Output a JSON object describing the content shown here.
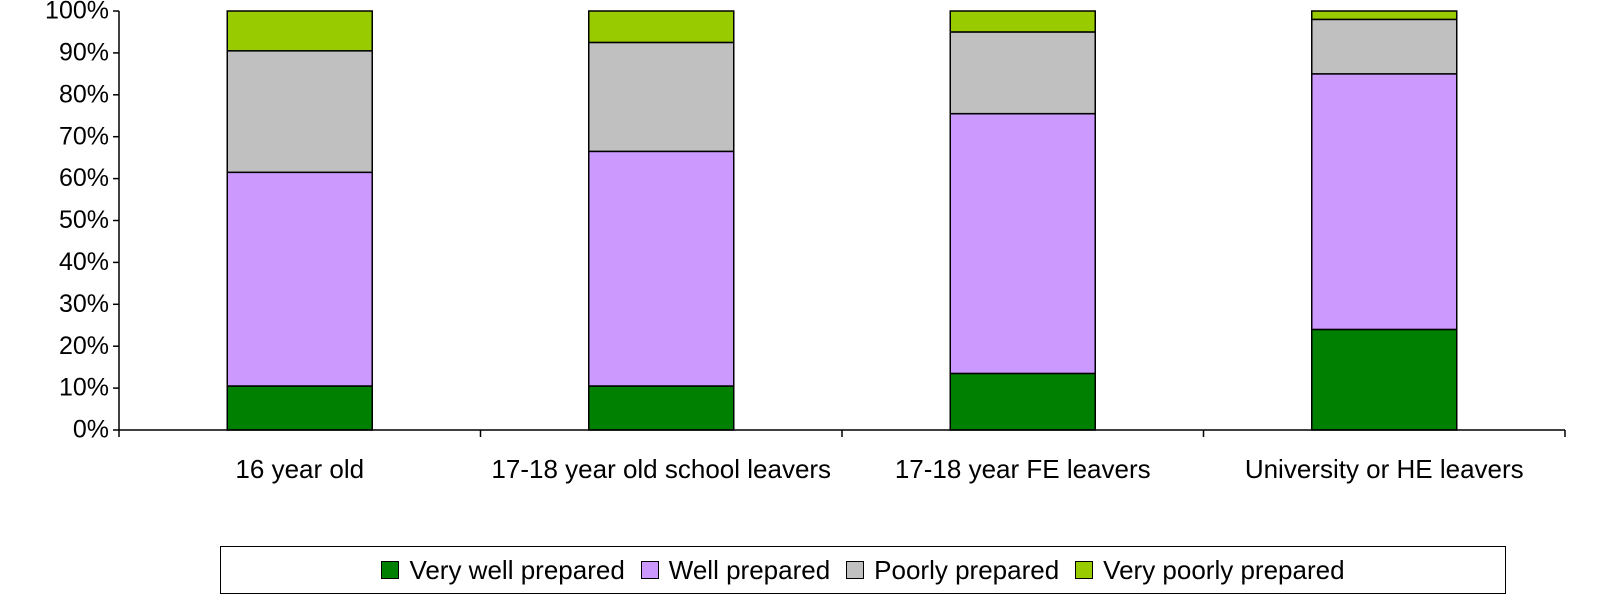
{
  "chart_data": {
    "type": "stacked_bar",
    "categories": [
      "16 year old",
      "17-18 year old school leavers",
      "17-18 year FE leavers",
      "University or HE leavers"
    ],
    "series": [
      {
        "name": "Very well prepared",
        "color": "#008000",
        "values": [
          10.5,
          10.5,
          13.5,
          24
        ]
      },
      {
        "name": "Well prepared",
        "color": "#cc99ff",
        "values": [
          51,
          56,
          62,
          61
        ]
      },
      {
        "name": "Poorly prepared",
        "color": "#c0c0c0",
        "values": [
          29,
          26,
          19.5,
          13
        ]
      },
      {
        "name": "Very poorly prepared",
        "color": "#99cc00",
        "values": [
          9.5,
          7.5,
          5,
          2
        ]
      }
    ],
    "ylim": [
      0,
      100
    ],
    "yticks": [
      {
        "value": 0,
        "label": "0%"
      },
      {
        "value": 10,
        "label": "10%"
      },
      {
        "value": 20,
        "label": "20%"
      },
      {
        "value": 30,
        "label": "30%"
      },
      {
        "value": 40,
        "label": "40%"
      },
      {
        "value": 50,
        "label": "50%"
      },
      {
        "value": 60,
        "label": "60%"
      },
      {
        "value": 70,
        "label": "70%"
      },
      {
        "value": 80,
        "label": "80%"
      },
      {
        "value": 90,
        "label": "90%"
      },
      {
        "value": 100,
        "label": "100%"
      }
    ],
    "legend": "bottom"
  }
}
